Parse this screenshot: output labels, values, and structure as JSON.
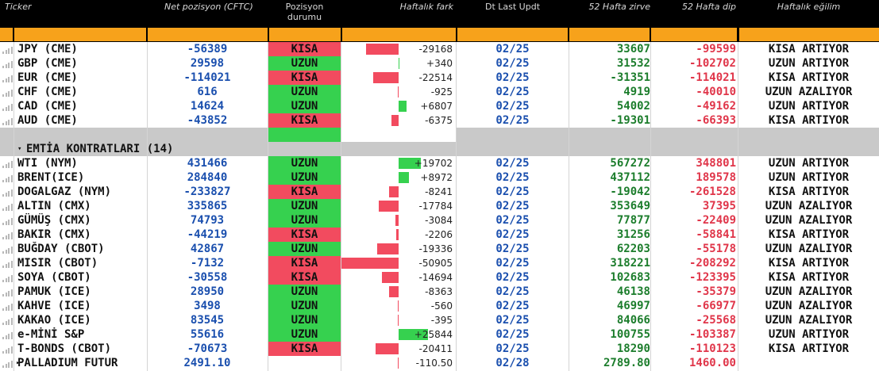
{
  "columns": {
    "ticker": "Ticker",
    "net": "Net pozisyon (CFTC)",
    "position_l1": "Pozisyon",
    "position_l2": "durumu",
    "weekly": "Haftalık fark",
    "date": "Dt Last Updt",
    "high": "52 Hafta zirve",
    "low": "52 Hafta dip",
    "trend": "Haftalık eğilim"
  },
  "colors": {
    "long": "#36d14f",
    "short": "#f24b5f",
    "header_accent": "#f7a21b",
    "value_blue": "#1a4fae",
    "high_green": "#1c7d2c",
    "low_red": "#e0364a"
  },
  "weekly_scale_max": 50905,
  "currency_rows": [
    {
      "ticker": "JPY (CME)",
      "net": "-56389",
      "position": "KISA",
      "weekly": "-29168",
      "weekly_value": -29168,
      "date": "02/25",
      "high": "33607",
      "low": "-99599",
      "trend": "KISA ARTIYOR"
    },
    {
      "ticker": "GBP (CME)",
      "net": "29598",
      "position": "UZUN",
      "weekly": "+340",
      "weekly_value": 340,
      "date": "02/25",
      "high": "31532",
      "low": "-102702",
      "trend": "UZUN ARTIYOR"
    },
    {
      "ticker": "EUR (CME)",
      "net": "-114021",
      "position": "KISA",
      "weekly": "-22514",
      "weekly_value": -22514,
      "date": "02/25",
      "high": "-31351",
      "low": "-114021",
      "trend": "KISA ARTIYOR"
    },
    {
      "ticker": "CHF (CME)",
      "net": "616",
      "position": "UZUN",
      "weekly": "-925",
      "weekly_value": -925,
      "date": "02/25",
      "high": "4919",
      "low": "-40010",
      "trend": "UZUN AZALIYOR"
    },
    {
      "ticker": "CAD (CME)",
      "net": "14624",
      "position": "UZUN",
      "weekly": "+6807",
      "weekly_value": 6807,
      "date": "02/25",
      "high": "54002",
      "low": "-49162",
      "trend": "UZUN ARTIYOR"
    },
    {
      "ticker": "AUD (CME)",
      "net": "-43852",
      "position": "KISA",
      "weekly": "-6375",
      "weekly_value": -6375,
      "date": "02/25",
      "high": "-19301",
      "low": "-66393",
      "trend": "KISA ARTIYOR"
    }
  ],
  "group": {
    "title": "EMTİA KONTRATLARI (14)"
  },
  "commodity_rows": [
    {
      "ticker": "WTI (NYM)",
      "net": "431466",
      "position": "UZUN",
      "weekly": "+19702",
      "weekly_value": 19702,
      "date": "02/25",
      "high": "567272",
      "low": "348801",
      "trend": "UZUN ARTIYOR"
    },
    {
      "ticker": "BRENT(ICE)",
      "net": "284840",
      "position": "UZUN",
      "weekly": "+8972",
      "weekly_value": 8972,
      "date": "02/25",
      "high": "437112",
      "low": "189578",
      "trend": "UZUN ARTIYOR"
    },
    {
      "ticker": "DOGALGAZ (NYM)",
      "net": "-233827",
      "position": "KISA",
      "weekly": "-8241",
      "weekly_value": -8241,
      "date": "02/25",
      "high": "-19042",
      "low": "-261528",
      "trend": "KISA ARTIYOR"
    },
    {
      "ticker": "ALTIN (CMX)",
      "net": "335865",
      "position": "UZUN",
      "weekly": "-17784",
      "weekly_value": -17784,
      "date": "02/25",
      "high": "353649",
      "low": "37395",
      "trend": "UZUN AZALIYOR"
    },
    {
      "ticker": "GÜMÜŞ (CMX)",
      "net": "74793",
      "position": "UZUN",
      "weekly": "-3084",
      "weekly_value": -3084,
      "date": "02/25",
      "high": "77877",
      "low": "-22409",
      "trend": "UZUN AZALIYOR"
    },
    {
      "ticker": "BAKIR (CMX)",
      "net": "-44219",
      "position": "KISA",
      "weekly": "-2206",
      "weekly_value": -2206,
      "date": "02/25",
      "high": "31256",
      "low": "-58841",
      "trend": "KISA ARTIYOR"
    },
    {
      "ticker": "BUĞDAY (CBOT)",
      "net": "42867",
      "position": "UZUN",
      "weekly": "-19336",
      "weekly_value": -19336,
      "date": "02/25",
      "high": "62203",
      "low": "-55178",
      "trend": "UZUN AZALIYOR"
    },
    {
      "ticker": "MISIR (CBOT)",
      "net": "-7132",
      "position": "KISA",
      "weekly": "-50905",
      "weekly_value": -50905,
      "date": "02/25",
      "high": "318221",
      "low": "-208292",
      "trend": "KISA ARTIYOR"
    },
    {
      "ticker": "SOYA (CBOT)",
      "net": "-30558",
      "position": "KISA",
      "weekly": "-14694",
      "weekly_value": -14694,
      "date": "02/25",
      "high": "102683",
      "low": "-123395",
      "trend": "KISA ARTIYOR"
    },
    {
      "ticker": "PAMUK (ICE)",
      "net": "28950",
      "position": "UZUN",
      "weekly": "-8363",
      "weekly_value": -8363,
      "date": "02/25",
      "high": "46138",
      "low": "-35379",
      "trend": "UZUN AZALIYOR"
    },
    {
      "ticker": "KAHVE (ICE)",
      "net": "3498",
      "position": "UZUN",
      "weekly": "-560",
      "weekly_value": -560,
      "date": "02/25",
      "high": "46997",
      "low": "-66977",
      "trend": "UZUN AZALIYOR"
    },
    {
      "ticker": "KAKAO (ICE)",
      "net": "83545",
      "position": "UZUN",
      "weekly": "-395",
      "weekly_value": -395,
      "date": "02/25",
      "high": "84066",
      "low": "-25568",
      "trend": "UZUN AZALIYOR"
    },
    {
      "ticker": "e-MİNİ S&P",
      "net": "55616",
      "position": "UZUN",
      "weekly": "+25844",
      "weekly_value": 25844,
      "date": "02/25",
      "high": "100755",
      "low": "-103387",
      "trend": "UZUN ARTIYOR"
    },
    {
      "ticker": "T-BONDS (CBOT)",
      "net": "-70673",
      "position": "KISA",
      "weekly": "-20411",
      "weekly_value": -20411,
      "date": "02/25",
      "high": "18290",
      "low": "-110123",
      "trend": "KISA ARTIYOR"
    },
    {
      "ticker": "PALLADIUM FUTUR",
      "net": "2491.10",
      "position": "",
      "weekly": "-110.50",
      "weekly_value": -110.5,
      "date": "02/28",
      "high": "2789.80",
      "low": "1460.00",
      "trend": ""
    }
  ]
}
